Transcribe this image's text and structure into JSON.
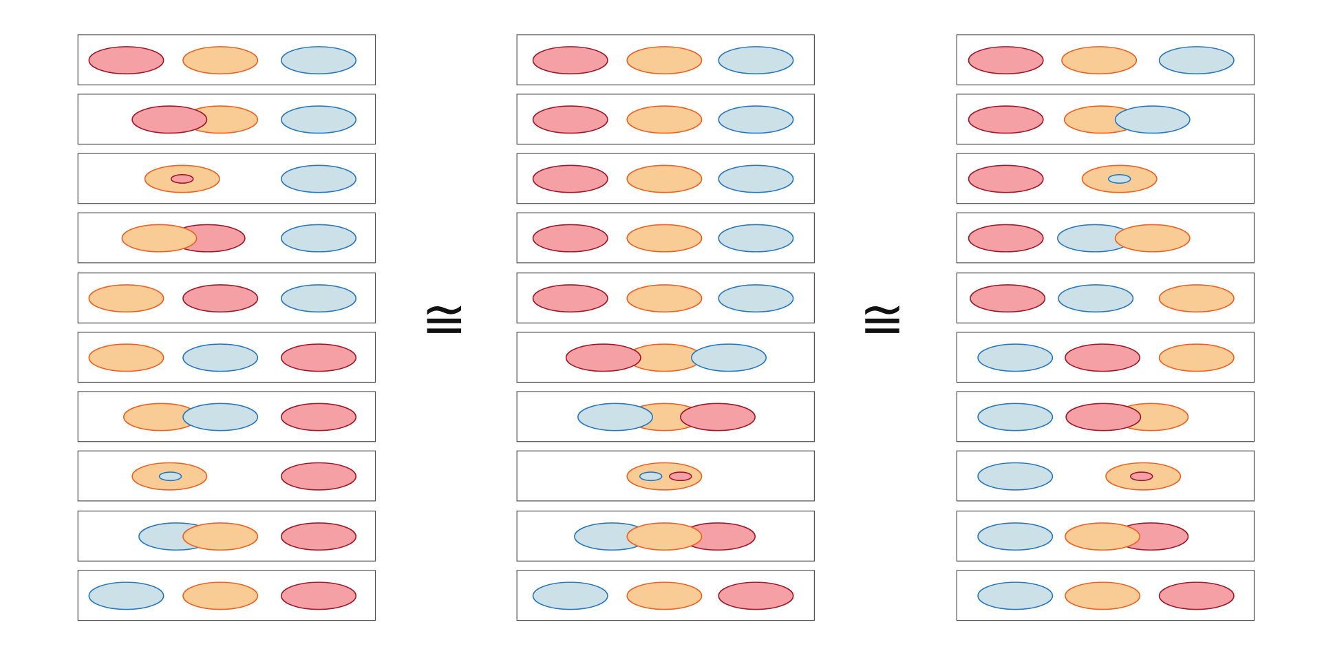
{
  "relations": [
    "≅",
    "≅"
  ]
}
